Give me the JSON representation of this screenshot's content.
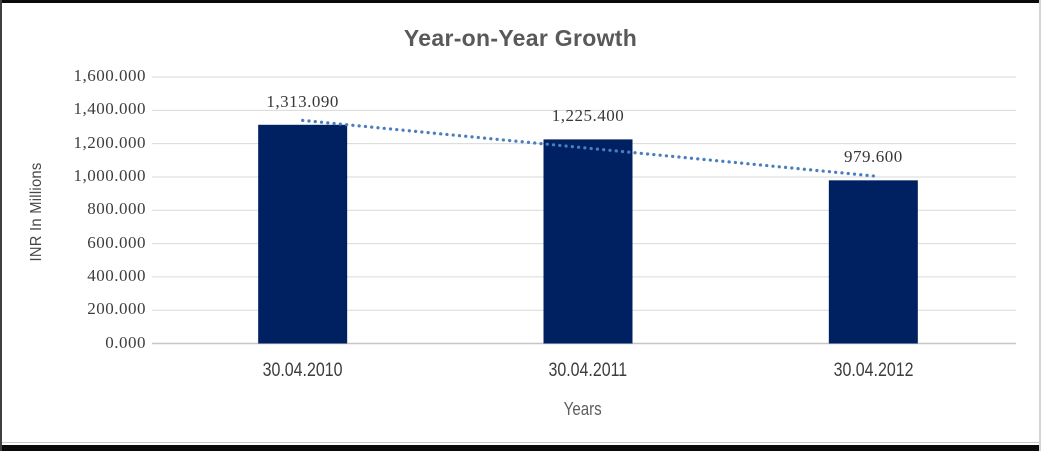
{
  "chart_data": {
    "type": "bar",
    "title": "Year-on-Year Growth",
    "xlabel": "Years",
    "ylabel": "INR In Millions",
    "categories": [
      "30.04.2010",
      "30.04.2011",
      "30.04.2012"
    ],
    "series": [
      {
        "name": "INR In Millions",
        "values": [
          1313.09,
          1225.4,
          979.6
        ]
      }
    ],
    "data_labels": [
      "1,313.090",
      "1,225.400",
      "979.600"
    ],
    "ylim": [
      0,
      1600
    ],
    "ytick_step": 200,
    "ytick_labels": [
      "0.000",
      "200.000",
      "400.000",
      "600.000",
      "800.000",
      "1,000.000",
      "1,200.000",
      "1,400.000",
      "1,600.000"
    ],
    "grid": true,
    "legend": "none",
    "trendline": {
      "type": "linear",
      "style": "dotted"
    },
    "colors": {
      "bar": "#002161",
      "trendline": "#4a7fbe",
      "gridline": "#d9d9d9",
      "axis_line": "#c6c6c6",
      "title_text": "#595959",
      "tick_text": "#3d3d3d"
    }
  }
}
